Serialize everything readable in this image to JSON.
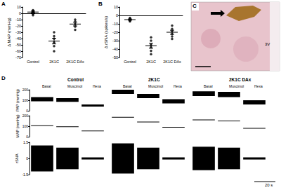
{
  "chart_data": [
    {
      "type": "scatter",
      "title": "A",
      "ylabel": "Δ MAP (mmHg)",
      "categories": [
        "Control",
        "2K1C",
        "2K1C DAx"
      ],
      "values": [
        [
          5,
          2,
          -1,
          4,
          -3,
          3
        ],
        [
          -30,
          -36,
          -40,
          -46,
          -52,
          -60
        ],
        [
          -10,
          -13,
          -17,
          -21,
          -26
        ]
      ],
      "mean": [
        2,
        -44,
        -17
      ],
      "sem": [
        1.5,
        4.5,
        3
      ],
      "ylim": [
        -70,
        10
      ],
      "yticks": [
        -70,
        -60,
        -50,
        -40,
        -30,
        -20,
        -10,
        0,
        10
      ],
      "color": "#000000",
      "marker": "circle",
      "grid": false
    },
    {
      "type": "scatter",
      "title": "B",
      "ylabel": "Δ rSNA (spikes/s)",
      "categories": [
        "Control",
        "2K1C",
        "2K1C DAx"
      ],
      "values": [
        [
          -3,
          -5,
          -6,
          -4,
          -7
        ],
        [
          -26,
          -30,
          -35,
          -38,
          -42,
          -46
        ],
        [
          -12,
          -16,
          -19,
          -22,
          -25,
          -28
        ]
      ],
      "mean": [
        -5,
        -36,
        -20
      ],
      "sem": [
        0.7,
        3,
        2.4
      ],
      "ylim": [
        -50,
        10
      ],
      "yticks": [
        -50,
        -40,
        -30,
        -20,
        -10,
        0,
        10
      ],
      "color": "#000000",
      "marker": "circle",
      "grid": false
    },
    {
      "type": "image",
      "title": "C",
      "annotation": "3V"
    },
    {
      "type": "trace",
      "title": "D",
      "groups": [
        "Control",
        "2K1C",
        "2K1C DAx"
      ],
      "conditions": [
        "Basal",
        "Muscimol",
        "Hexa"
      ],
      "color": "#000000",
      "rows": [
        {
          "ylabel": "PAP (mmHg)",
          "type": "band",
          "ylim": [
            0,
            200
          ],
          "yticks": [
            0,
            100,
            200
          ],
          "values": [
            [
              [
                90,
                130
              ],
              [
                85,
                120
              ],
              [
                40,
                60
              ]
            ],
            [
              [
                160,
                200
              ],
              [
                120,
                160
              ],
              [
                70,
                110
              ]
            ],
            [
              [
                140,
                185
              ],
              [
                130,
                180
              ],
              [
                60,
                100
              ]
            ]
          ]
        },
        {
          "ylabel": "MAP (mmHg)",
          "type": "line",
          "ylim": [
            0,
            200
          ],
          "yticks": [
            0,
            100,
            200
          ],
          "values": [
            [
              105,
              95,
              55
            ],
            [
              185,
              140,
              90
            ],
            [
              160,
              150,
              80
            ]
          ]
        },
        {
          "ylabel": "rSNA",
          "type": "band",
          "ylim": [
            -1.5,
            1.5
          ],
          "yticks": [
            -1.5,
            0,
            1.5
          ],
          "values": [
            [
              [
                -1.2,
                1.2
              ],
              [
                -1.0,
                1.0
              ],
              [
                -0.1,
                0.1
              ]
            ],
            [
              [
                -1.4,
                1.4
              ],
              [
                -1.0,
                1.0
              ],
              [
                -0.1,
                0.1
              ]
            ],
            [
              [
                -1.1,
                1.1
              ],
              [
                -1.0,
                1.0
              ],
              [
                -0.1,
                0.1
              ]
            ]
          ]
        }
      ],
      "scale_bar": "20 s"
    }
  ]
}
